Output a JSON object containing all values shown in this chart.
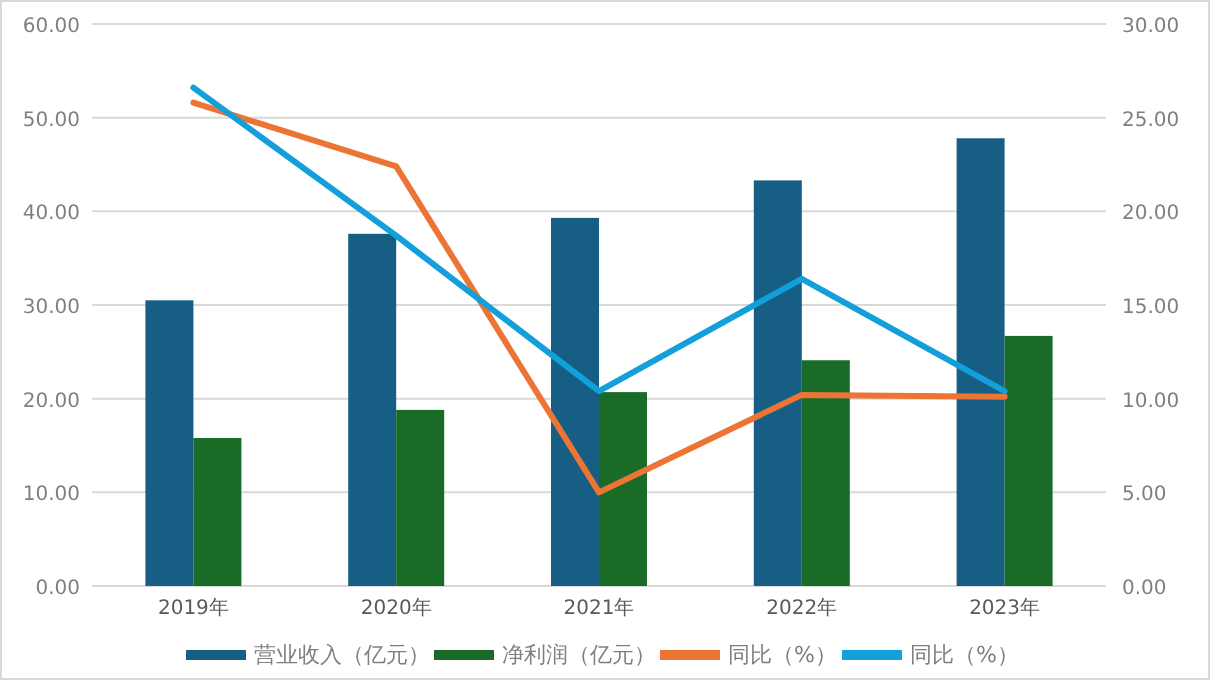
{
  "chart_data": {
    "type": "bar",
    "categories": [
      "2019年",
      "2020年",
      "2021年",
      "2022年",
      "2023年"
    ],
    "series": [
      {
        "name": "营业收入（亿元）",
        "color": "#165e83",
        "values": [
          30.5,
          37.6,
          39.3,
          43.3,
          47.8
        ]
      },
      {
        "name": "净利润（亿元）",
        "color": "#1a6b27",
        "values": [
          15.8,
          18.8,
          20.7,
          24.1,
          26.7
        ]
      },
      {
        "name": "同比（%）",
        "type": "line",
        "axis": "y2",
        "color": "#ec7434",
        "values": [
          25.8,
          22.4,
          5.0,
          10.2,
          10.1
        ]
      },
      {
        "name": "同比（%）",
        "type": "line",
        "axis": "y2",
        "color": "#139fda",
        "values": [
          26.6,
          18.7,
          10.4,
          16.4,
          10.4
        ]
      }
    ],
    "ylim": [
      0,
      60
    ],
    "yticks": [
      {
        "value": 0,
        "label": "0.00"
      },
      {
        "value": 10,
        "label": "10.00"
      },
      {
        "value": 20,
        "label": "20.00"
      },
      {
        "value": 30,
        "label": "30.00"
      },
      {
        "value": 40,
        "label": "40.00"
      },
      {
        "value": 50,
        "label": "50.00"
      },
      {
        "value": 60,
        "label": "60.00"
      }
    ],
    "y2lim": [
      0,
      30
    ],
    "y2ticks": [
      {
        "value": 0,
        "label": "0.00"
      },
      {
        "value": 5,
        "label": "5.00"
      },
      {
        "value": 10,
        "label": "10.00"
      },
      {
        "value": 15,
        "label": "15.00"
      },
      {
        "value": 20,
        "label": "20.00"
      },
      {
        "value": 25,
        "label": "25.00"
      },
      {
        "value": 30,
        "label": "30.00"
      }
    ],
    "grid": "y",
    "legend": "bottom",
    "line_style": "solid",
    "marker": "none"
  }
}
